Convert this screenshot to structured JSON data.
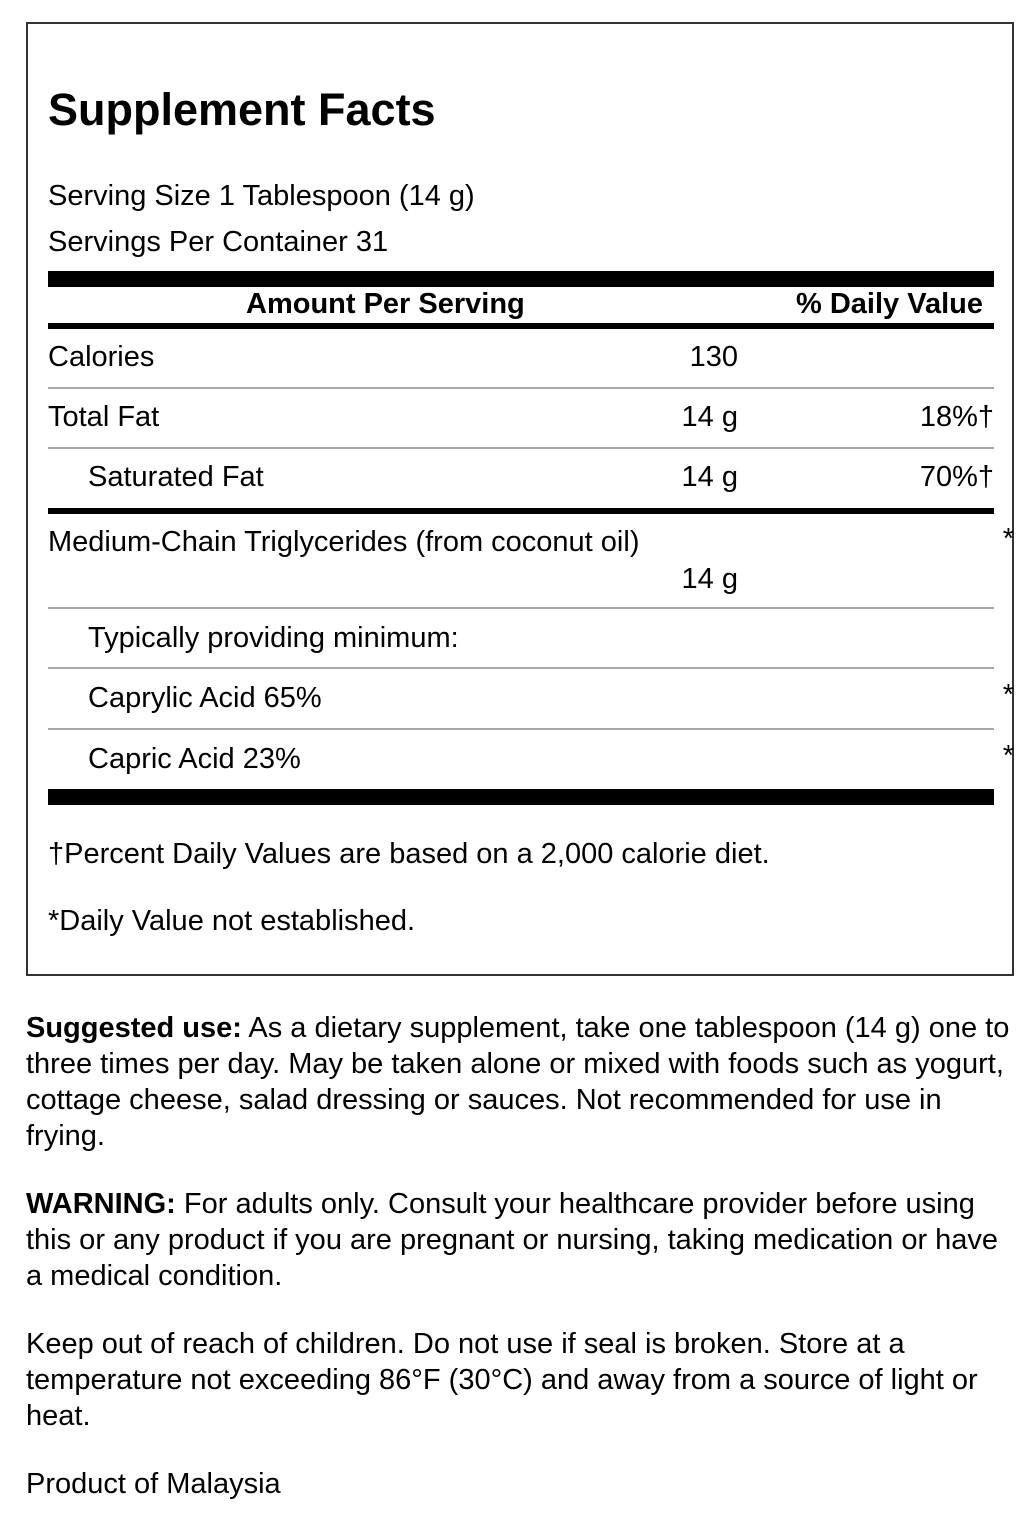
{
  "facts": {
    "title": "Supplement Facts",
    "serving_size": "Serving Size 1 Tablespoon (14 g)",
    "servings_per_container": "Servings Per Container 31",
    "header_amount": "Amount Per Serving",
    "header_dv": "% Daily Value",
    "rows": [
      {
        "name": "Calories",
        "amount": "130",
        "dv": ""
      },
      {
        "name": "Total Fat",
        "amount": "14 g",
        "dv": "18%†"
      },
      {
        "name": "Saturated Fat",
        "amount": "14 g",
        "dv": "70%†"
      },
      {
        "name": "Medium-Chain Triglycerides (from coconut oil)",
        "amount": "14 g",
        "dv": "*"
      },
      {
        "name": "Typically providing minimum:",
        "amount": "",
        "dv": ""
      },
      {
        "name": "Caprylic Acid 65%",
        "amount": "",
        "dv": "*"
      },
      {
        "name": "Capric Acid 23%",
        "amount": "",
        "dv": "*"
      }
    ],
    "footnote_dagger": "†Percent Daily Values are based on a 2,000 calorie diet.",
    "footnote_star": "*Daily Value not established."
  },
  "text": {
    "suggested_label": "Suggested use:",
    "suggested_body": " As a dietary supplement, take one tablespoon (14 g) one to three times per day. May be taken alone or mixed with foods such as yogurt, cottage cheese, salad dressing or sauces. Not recommended for use in frying.",
    "warning_label": "WARNING:",
    "warning_body": " For adults only. Consult your healthcare provider before using this or any product if you are pregnant or nursing, taking medication or have a medical condition.",
    "storage": "Keep out of reach of children. Do not use if seal is broken. Store at a temperature not exceeding 86°F (30°C) and away from a source of light or heat.",
    "origin": "Product of Malaysia"
  }
}
